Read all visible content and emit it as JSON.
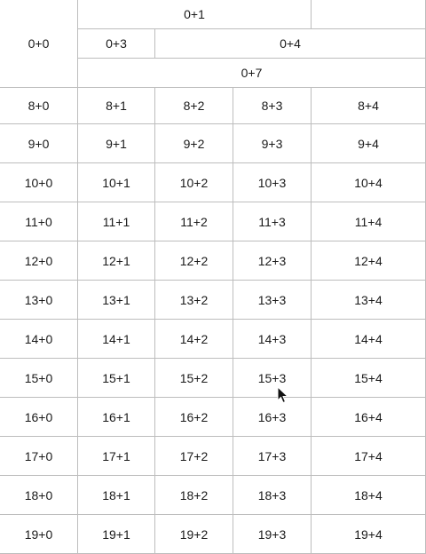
{
  "header": {
    "corner": "0+0",
    "top": "0+1",
    "mid_left": "0+3",
    "mid_right": "0+4",
    "bottom": "0+7"
  },
  "rows": [
    [
      "8+0",
      "8+1",
      "8+2",
      "8+3",
      "8+4"
    ],
    [
      "9+0",
      "9+1",
      "9+2",
      "9+3",
      "9+4"
    ],
    [
      "10+0",
      "10+1",
      "10+2",
      "10+3",
      "10+4"
    ],
    [
      "11+0",
      "11+1",
      "11+2",
      "11+3",
      "11+4"
    ],
    [
      "12+0",
      "12+1",
      "12+2",
      "12+3",
      "12+4"
    ],
    [
      "13+0",
      "13+1",
      "13+2",
      "13+3",
      "13+4"
    ],
    [
      "14+0",
      "14+1",
      "14+2",
      "14+3",
      "14+4"
    ],
    [
      "15+0",
      "15+1",
      "15+2",
      "15+3",
      "15+4"
    ],
    [
      "16+0",
      "16+1",
      "16+2",
      "16+3",
      "16+4"
    ],
    [
      "17+0",
      "17+1",
      "17+2",
      "17+3",
      "17+4"
    ],
    [
      "18+0",
      "18+1",
      "18+2",
      "18+3",
      "18+4"
    ],
    [
      "19+0",
      "19+1",
      "19+2",
      "19+3",
      "19+4"
    ]
  ]
}
